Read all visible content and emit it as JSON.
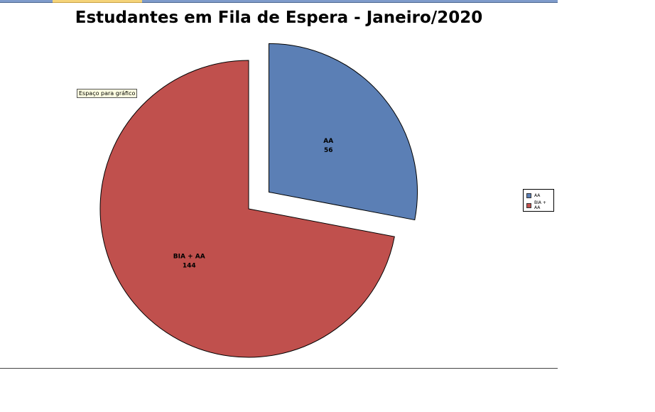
{
  "chart_data": {
    "type": "pie",
    "title": "Estudantes em Fila de Espera - Janeiro/2020",
    "categories": [
      "AA",
      "BIA + AA"
    ],
    "values": [
      56,
      144
    ],
    "colors": [
      "#5b7fb5",
      "#c0504d"
    ],
    "exploded": [
      "AA"
    ],
    "legend_position": "right",
    "legend": [
      "AA",
      "BIA + AA"
    ]
  },
  "placeholder_label": "Espaço para gráfico"
}
